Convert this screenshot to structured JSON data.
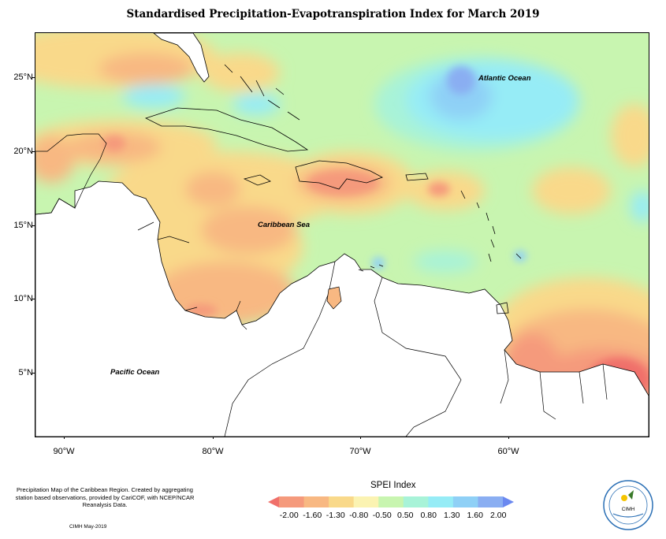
{
  "title": "Standardised Precipitation-Evapotranspiration Index for March 2019",
  "map": {
    "lat_labels": [
      "25°N",
      "20°N",
      "15°N",
      "10°N",
      "5°N"
    ],
    "lon_labels": [
      "90°W",
      "80°W",
      "70°W",
      "60°W"
    ],
    "annotations": {
      "atlantic": "Atlantic Ocean",
      "caribbean": "Caribbean Sea",
      "pacific": "Pacific Ocean"
    }
  },
  "legend": {
    "title": "SPEI Index",
    "values": [
      "-2.00",
      "-1.60",
      "-1.30",
      "-0.80",
      "-0.50",
      "0.50",
      "0.80",
      "1.30",
      "1.60",
      "2.00"
    ],
    "colors": [
      "#f0706a",
      "#f59a7c",
      "#f8b882",
      "#f9d98a",
      "#fbf3b2",
      "#c8f5b0",
      "#a8f3d8",
      "#96ecf6",
      "#8fd0f6",
      "#8aaef2",
      "#6a88f0"
    ]
  },
  "footer": {
    "description": "Precipitation Map of the Caribbean Region. Created by aggregating station based observations, provided by CariCOF, with NCEP/NCAR Reanalysis Data.",
    "credit": "CIMH May-2019"
  },
  "logo": {
    "text": "CIMH"
  }
}
